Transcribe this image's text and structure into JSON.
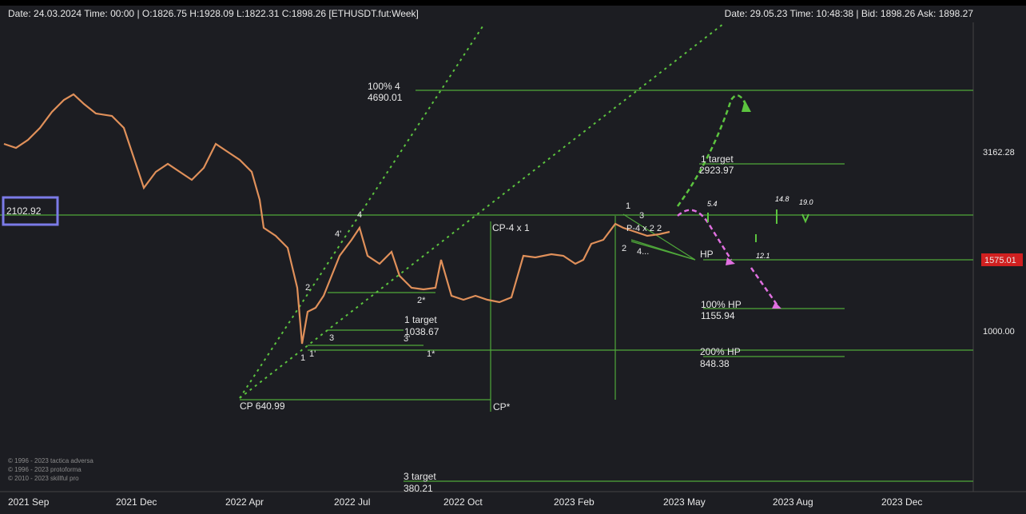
{
  "header": {
    "left": "Date: 24.03.2024 Time: 00:00 | O:1826.75 H:1928.09 L:1822.31 C:1898.26 [ETHUSDT.fut:Week]",
    "right": "Date: 29.05.23 Time: 10:48:38 | Bid: 1898.26 Ask: 1898.27"
  },
  "price_axis": {
    "labels": [
      "3162.28",
      "1000.00"
    ],
    "current": "1575.01",
    "cursor": "2102.92"
  },
  "time_axis": [
    "2021 Sep",
    "2021 Dec",
    "2022 Apr",
    "2022 Jul",
    "2022 Oct",
    "2023 Feb",
    "2023 May",
    "2023 Aug",
    "2023 Dec"
  ],
  "annotations": [
    "100%  4",
    "4690.01",
    "1 target",
    "2923.97",
    "5.4",
    "14.8",
    "19.0",
    "12.1",
    "HP",
    "100% HP",
    "1155.94",
    "200% HP",
    "848.38",
    "CP-4 x 1",
    "CP  640.99",
    "CP*",
    "1 target",
    "1038.67",
    "3 target",
    "380.21"
  ],
  "wave_labels": [
    "1",
    "3",
    "2",
    "4...",
    "P-4 x 2",
    "2",
    "4",
    "4'",
    "2",
    "3",
    "1",
    "1'",
    "1*",
    "3'",
    "2*"
  ],
  "copyright": [
    "© 1996 - 2023 tactica adversa",
    "© 1996 - 2023 protoforma",
    "© 2010 - 2023 skillful pro"
  ]
}
